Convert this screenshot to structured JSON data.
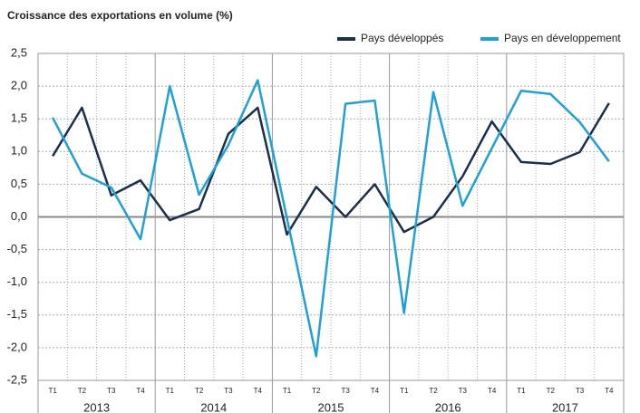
{
  "chart_data": {
    "type": "line",
    "title": "Croissance des exportations en volume (%)",
    "categories": [
      "T1",
      "T2",
      "T3",
      "T4",
      "T1",
      "T2",
      "T3",
      "T4",
      "T1",
      "T2",
      "T3",
      "T4",
      "T1",
      "T2",
      "T3",
      "T4",
      "T1",
      "T2",
      "T3",
      "T4"
    ],
    "years": [
      "2013",
      "2014",
      "2015",
      "2016",
      "2017"
    ],
    "series": [
      {
        "name": "Pays développés",
        "color": "#1b2f4b",
        "values": [
          0.93,
          1.67,
          0.33,
          0.56,
          -0.05,
          0.12,
          1.27,
          1.67,
          -0.27,
          0.46,
          0.0,
          0.5,
          -0.23,
          0.0,
          0.62,
          1.46,
          0.84,
          0.81,
          0.99,
          1.74
        ]
      },
      {
        "name": "Pays en développement",
        "color": "#1fa0d6",
        "values": [
          1.52,
          0.66,
          0.45,
          -0.34,
          2.0,
          0.34,
          1.1,
          2.09,
          -0.02,
          -2.13,
          1.73,
          1.78,
          -1.47,
          1.91,
          0.17,
          1.05,
          1.93,
          1.88,
          1.45,
          0.85
        ]
      }
    ],
    "ylim": [
      -2.5,
      2.5
    ],
    "yticks": [
      {
        "value": 2.5,
        "label": "2,5"
      },
      {
        "value": 2,
        "label": "2,0"
      },
      {
        "value": 1.5,
        "label": "1,5"
      },
      {
        "value": 1,
        "label": "1,0"
      },
      {
        "value": 0.5,
        "label": "0,5"
      },
      {
        "value": 0,
        "label": "0,0"
      },
      {
        "value": -0.5,
        "label": "-0,5"
      },
      {
        "value": -1,
        "label": "-1,0"
      },
      {
        "value": -1.5,
        "label": "-1,5"
      },
      {
        "value": -2,
        "label": "-2,0"
      },
      {
        "value": -2.5,
        "label": "-2,5"
      }
    ],
    "grid": true,
    "legend": "top-right"
  }
}
